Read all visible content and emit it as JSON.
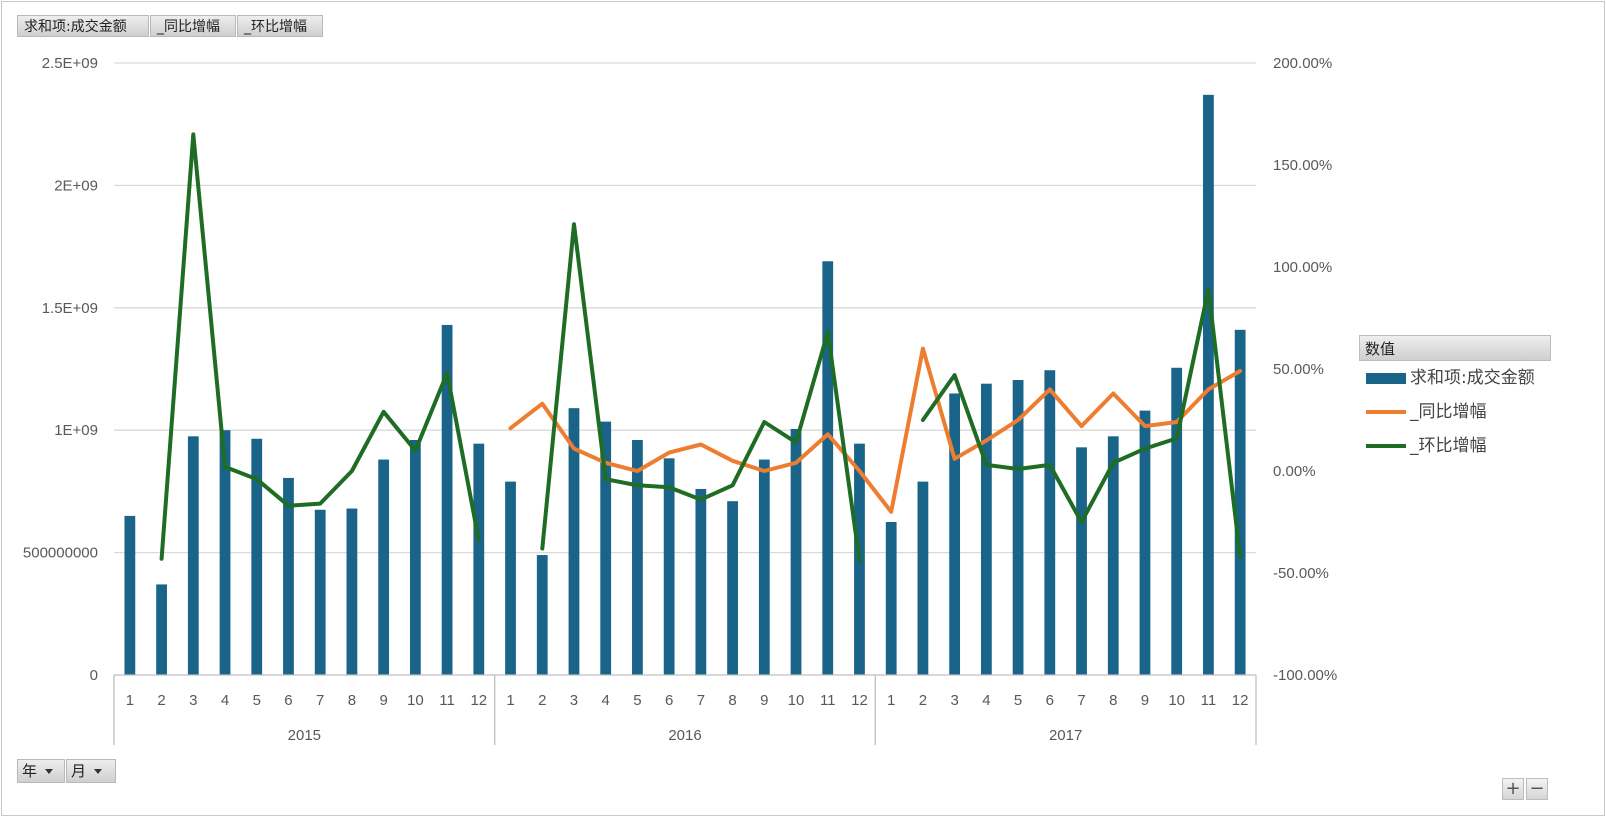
{
  "toolbar": {
    "value_fields": [
      "求和项:成交金额",
      "_同比增幅",
      "_环比增幅"
    ],
    "axis_fields": [
      "年",
      "月"
    ],
    "zoom_in": "+",
    "zoom_out": "−"
  },
  "legend": {
    "title": "数值",
    "items": [
      "求和项:成交金额",
      "_同比增幅",
      "_环比增幅"
    ]
  },
  "colors": {
    "bar": "#1a6489",
    "yoy": "#ed7d31",
    "mom": "#1f6d25",
    "grid": "#d9d9d9"
  },
  "chart_data": {
    "type": "bar",
    "categories": [
      "1",
      "2",
      "3",
      "4",
      "5",
      "6",
      "7",
      "8",
      "9",
      "10",
      "11",
      "12",
      "1",
      "2",
      "3",
      "4",
      "5",
      "6",
      "7",
      "8",
      "9",
      "10",
      "11",
      "12",
      "1",
      "2",
      "3",
      "4",
      "5",
      "6",
      "7",
      "8",
      "9",
      "10",
      "11",
      "12"
    ],
    "groups": [
      {
        "label": "2015",
        "count": 12
      },
      {
        "label": "2016",
        "count": 12
      },
      {
        "label": "2017",
        "count": 12
      }
    ],
    "y_left": {
      "ticks": [
        "0",
        "500000000",
        "1E+09",
        "1.5E+09",
        "2E+09",
        "2.5E+09"
      ],
      "range": [
        0,
        2500000000
      ]
    },
    "y_right": {
      "ticks": [
        "-100.00%",
        "-50.00%",
        "0.00%",
        "50.00%",
        "100.00%",
        "150.00%",
        "200.00%"
      ],
      "range": [
        -100,
        200
      ]
    },
    "grid": true,
    "legend_position": "right",
    "series": [
      {
        "name": "求和项:成交金额",
        "type": "bar",
        "axis": "left",
        "values": [
          650000000,
          370000000,
          975000000,
          1000000000,
          965000000,
          805000000,
          675000000,
          680000000,
          880000000,
          960000000,
          1430000000,
          945000000,
          790000000,
          490000000,
          1090000000,
          1035000000,
          960000000,
          885000000,
          760000000,
          710000000,
          880000000,
          1005000000,
          1690000000,
          945000000,
          625000000,
          790000000,
          1150000000,
          1190000000,
          1205000000,
          1245000000,
          930000000,
          975000000,
          1080000000,
          1255000000,
          2370000000,
          1410000000
        ]
      },
      {
        "name": "_同比增幅",
        "type": "line",
        "axis": "right",
        "values": [
          null,
          null,
          null,
          null,
          null,
          null,
          null,
          null,
          null,
          null,
          null,
          null,
          21,
          33,
          11,
          4,
          0,
          9,
          13,
          5,
          0,
          4,
          18,
          0,
          -20,
          60,
          6,
          15,
          25,
          40,
          22,
          38,
          22,
          24,
          40,
          49
        ]
      },
      {
        "name": "_环比增幅",
        "type": "line",
        "axis": "right",
        "values": [
          null,
          -43,
          165,
          2,
          -4,
          -17,
          -16,
          0,
          29,
          10,
          48,
          -34,
          null,
          -38,
          121,
          -4,
          -7,
          -8,
          -14,
          -7,
          24,
          14,
          68,
          -44,
          null,
          25,
          47,
          3,
          1,
          3,
          -25,
          4,
          11,
          16,
          89,
          -42
        ]
      }
    ]
  }
}
